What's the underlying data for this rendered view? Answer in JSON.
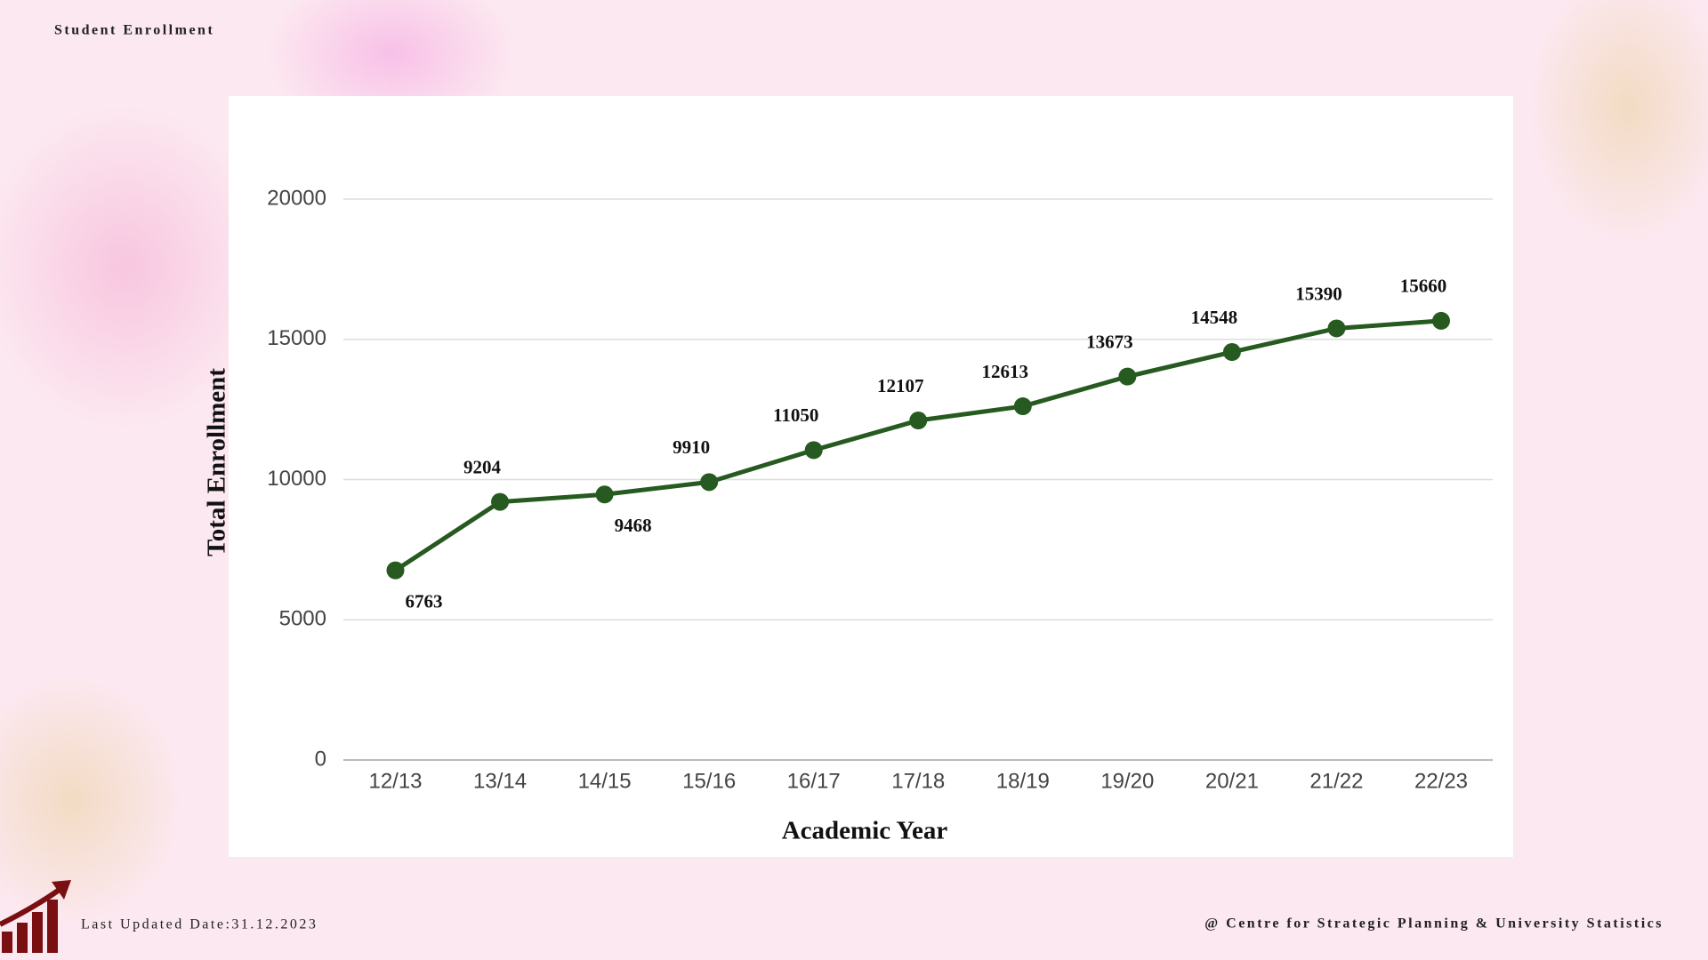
{
  "header": {
    "title": "Student Enrollment"
  },
  "footer": {
    "updated": "Last Updated Date:31.12.2023",
    "credit": "@ Centre for Strategic Planning & University Statistics"
  },
  "chart_data": {
    "type": "line",
    "x_label": "Academic Year",
    "y_label": "Total Enrollment",
    "categories": [
      "12/13",
      "13/14",
      "14/15",
      "15/16",
      "16/17",
      "17/18",
      "18/19",
      "19/20",
      "20/21",
      "21/22",
      "22/23"
    ],
    "series": [
      {
        "name": "Total Enrollment",
        "color": "#265a20",
        "values": [
          6763,
          9204,
          9468,
          9910,
          11050,
          12107,
          12613,
          13673,
          14548,
          15390,
          15660
        ]
      }
    ],
    "ylim": [
      0,
      20000
    ],
    "yticks": [
      0,
      5000,
      10000,
      15000,
      20000
    ],
    "grid": true
  }
}
